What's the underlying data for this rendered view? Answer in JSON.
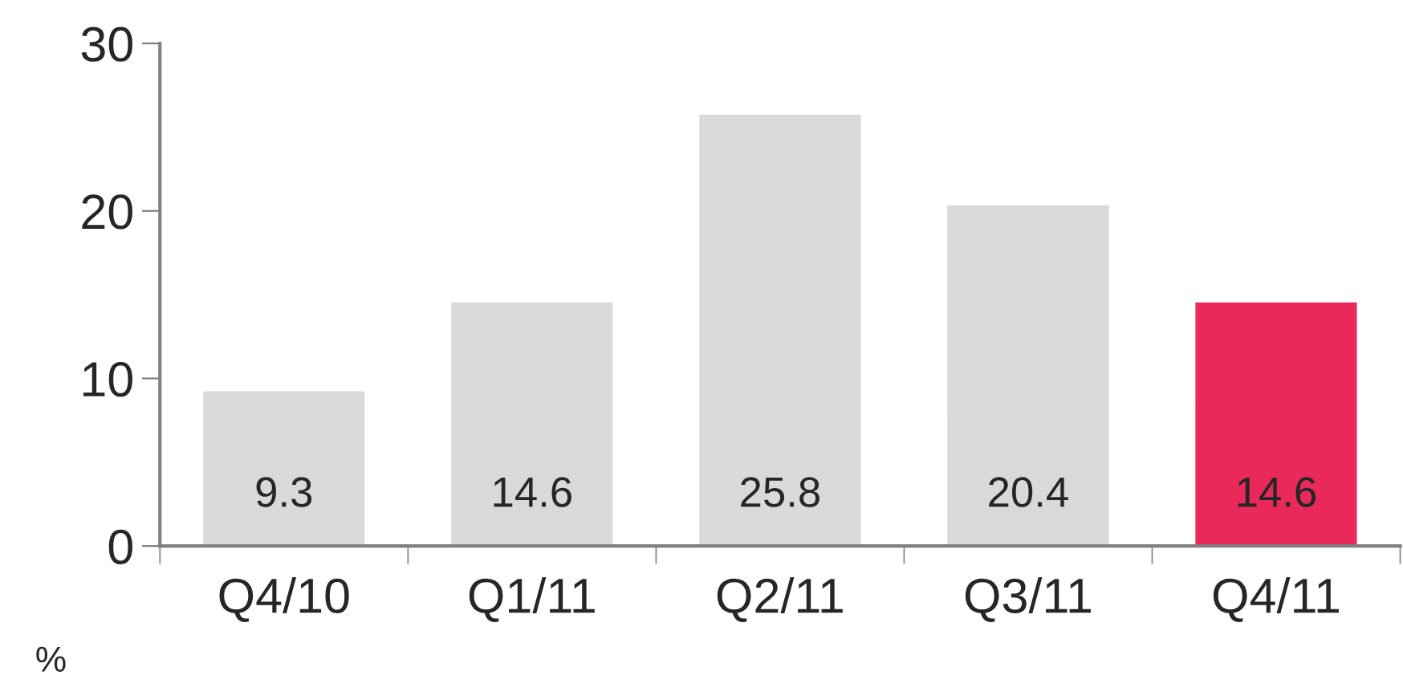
{
  "chart_data": {
    "type": "bar",
    "categories": [
      "Q4/10",
      "Q1/11",
      "Q2/11",
      "Q3/11",
      "Q4/11"
    ],
    "values": [
      9.3,
      14.6,
      25.8,
      20.4,
      14.6
    ],
    "colors": [
      "#d9d9d9",
      "#d9d9d9",
      "#d9d9d9",
      "#d9d9d9",
      "#e8295a"
    ],
    "ylim": [
      0,
      30
    ],
    "yticks": [
      0,
      10,
      20,
      30
    ],
    "data_labels": true,
    "annotations": [
      "%"
    ]
  }
}
